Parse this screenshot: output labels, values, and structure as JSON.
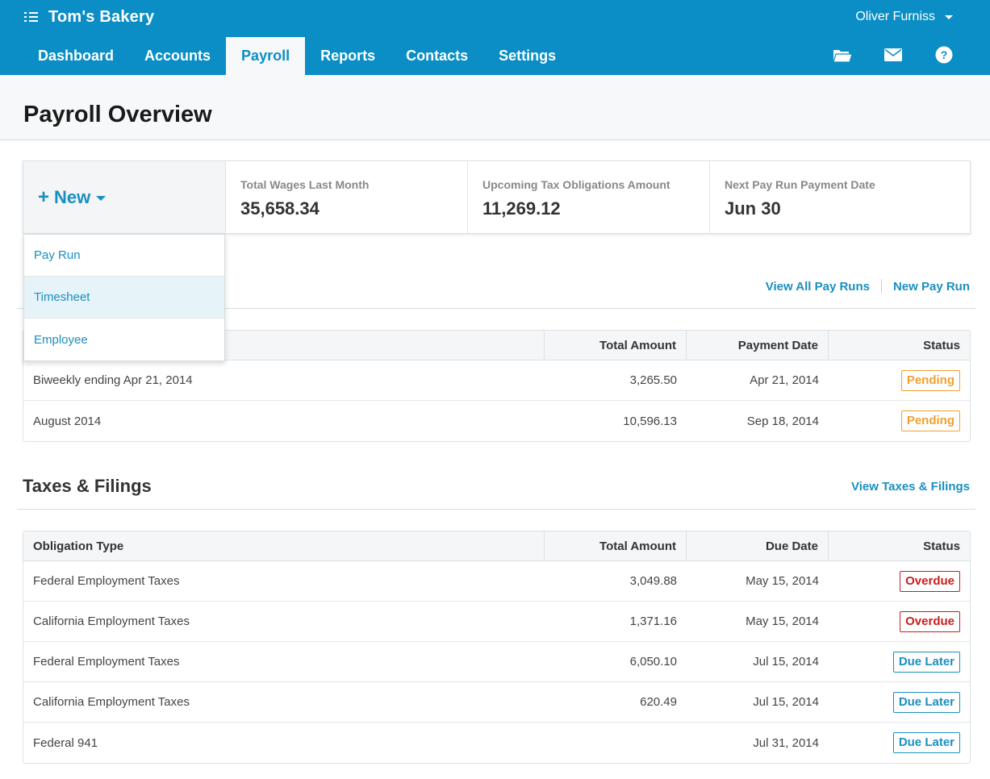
{
  "app": {
    "name": "Tom's Bakery",
    "user": "Oliver Furniss"
  },
  "nav": {
    "tabs": [
      {
        "label": "Dashboard"
      },
      {
        "label": "Accounts"
      },
      {
        "label": "Payroll"
      },
      {
        "label": "Reports"
      },
      {
        "label": "Contacts"
      },
      {
        "label": "Settings"
      }
    ],
    "active": "Payroll",
    "icons": [
      "folder-icon",
      "mail-icon",
      "help-icon"
    ]
  },
  "page": {
    "title": "Payroll Overview"
  },
  "summary": {
    "new_label": "New",
    "stats": [
      {
        "label": "Total Wages Last Month",
        "value": "35,658.34"
      },
      {
        "label": "Upcoming Tax Obligations Amount",
        "value": "11,269.12"
      },
      {
        "label": "Next Pay Run Payment Date",
        "value": "Jun 30"
      }
    ]
  },
  "dropdown": {
    "items": [
      {
        "label": "Pay Run"
      },
      {
        "label": "Timesheet"
      },
      {
        "label": "Employee"
      }
    ],
    "highlighted": "Timesheet"
  },
  "payruns": {
    "links": {
      "view_all": "View All Pay Runs",
      "new": "New Pay Run"
    },
    "headers": {
      "amount": "Total Amount",
      "date": "Payment Date",
      "status": "Status"
    },
    "rows": [
      {
        "name": "Biweekly ending Apr 21, 2014",
        "amount": "3,265.50",
        "date": "Apr 21, 2014",
        "status": "Pending"
      },
      {
        "name": "August 2014",
        "amount": "10,596.13",
        "date": "Sep 18, 2014",
        "status": "Pending"
      }
    ]
  },
  "taxes": {
    "title": "Taxes & Filings",
    "link": "View Taxes & Filings",
    "headers": {
      "type": "Obligation Type",
      "amount": "Total Amount",
      "date": "Due Date",
      "status": "Status"
    },
    "rows": [
      {
        "type": "Federal Employment Taxes",
        "amount": "3,049.88",
        "date": "May 15, 2014",
        "status": "Overdue"
      },
      {
        "type": "California Employment Taxes",
        "amount": "1,371.16",
        "date": "May 15, 2014",
        "status": "Overdue"
      },
      {
        "type": "Federal Employment Taxes",
        "amount": "6,050.10",
        "date": "Jul 15, 2014",
        "status": "Due Later"
      },
      {
        "type": "California Employment Taxes",
        "amount": "620.49",
        "date": "Jul 15, 2014",
        "status": "Due Later"
      },
      {
        "type": "Federal 941",
        "amount": "",
        "date": "Jul 31, 2014",
        "status": "Due Later"
      }
    ]
  },
  "colors": {
    "brand": "#0b8ec5",
    "link": "#1a8fc1",
    "pending": "#f0a030",
    "overdue": "#c81e1e",
    "due_later": "#1a8fc1"
  }
}
